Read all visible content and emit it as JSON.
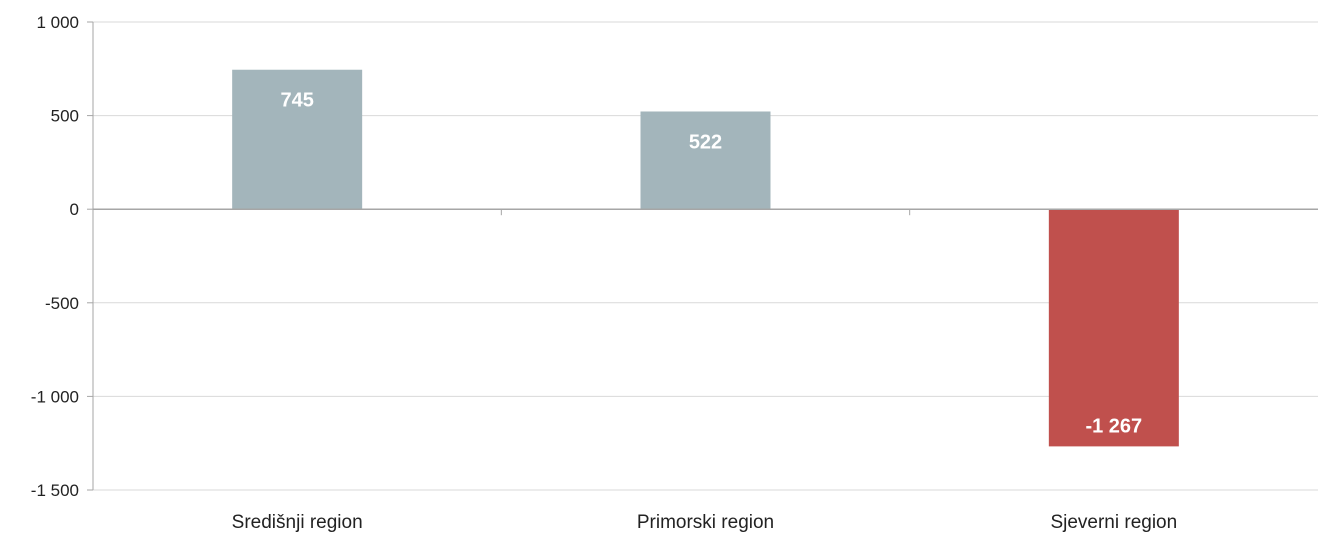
{
  "chart_data": {
    "type": "bar",
    "categories": [
      "Središnji region",
      "Primorski region",
      "Sjeverni region"
    ],
    "values": [
      745,
      522,
      -1267
    ],
    "data_labels": [
      "745",
      "522",
      "-1 267"
    ],
    "ylim": [
      -1500,
      1000
    ],
    "yticks": [
      1000,
      500,
      0,
      -500,
      -1000,
      -1500
    ],
    "ytick_labels": [
      "1 000",
      "500",
      "0",
      "-500",
      "-1 000",
      "-1 500"
    ],
    "grid": true,
    "legend": "none",
    "colors": {
      "positive": "#a3b5bb",
      "negative": "#c0504d",
      "grid": "#d9d9d9",
      "axis": "#a6a6a6"
    }
  }
}
